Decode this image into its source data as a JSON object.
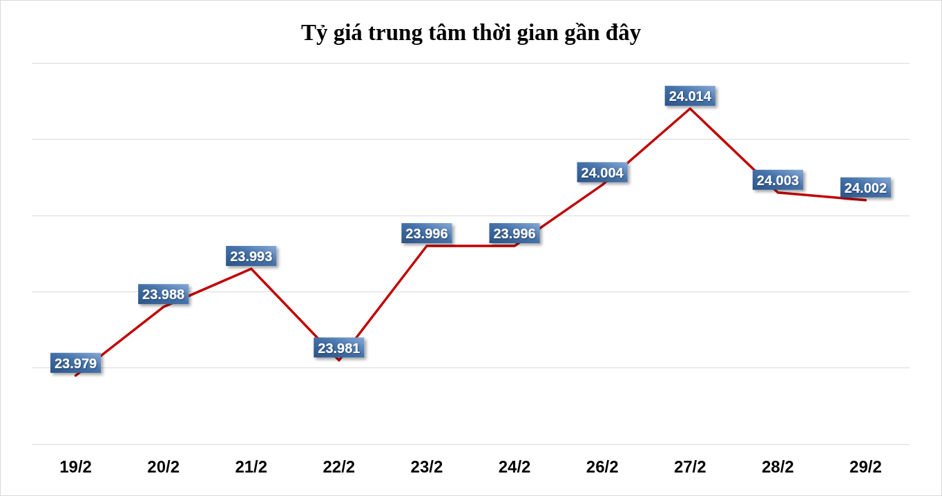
{
  "chart_data": {
    "type": "line",
    "title": "Tỷ giá trung tâm thời gian gần đây",
    "categories": [
      "19/2",
      "20/2",
      "21/2",
      "22/2",
      "23/2",
      "24/2",
      "26/2",
      "27/2",
      "28/2",
      "29/2"
    ],
    "series": [
      {
        "color": "#c00000",
        "values": [
          23.979,
          23.988,
          23.993,
          23.981,
          23.996,
          23.996,
          24.004,
          24.014,
          24.003,
          24.002
        ]
      }
    ],
    "grid": "y",
    "tick_labels": "x",
    "data_labels": true,
    "marker": "none",
    "line_style": "solid"
  }
}
